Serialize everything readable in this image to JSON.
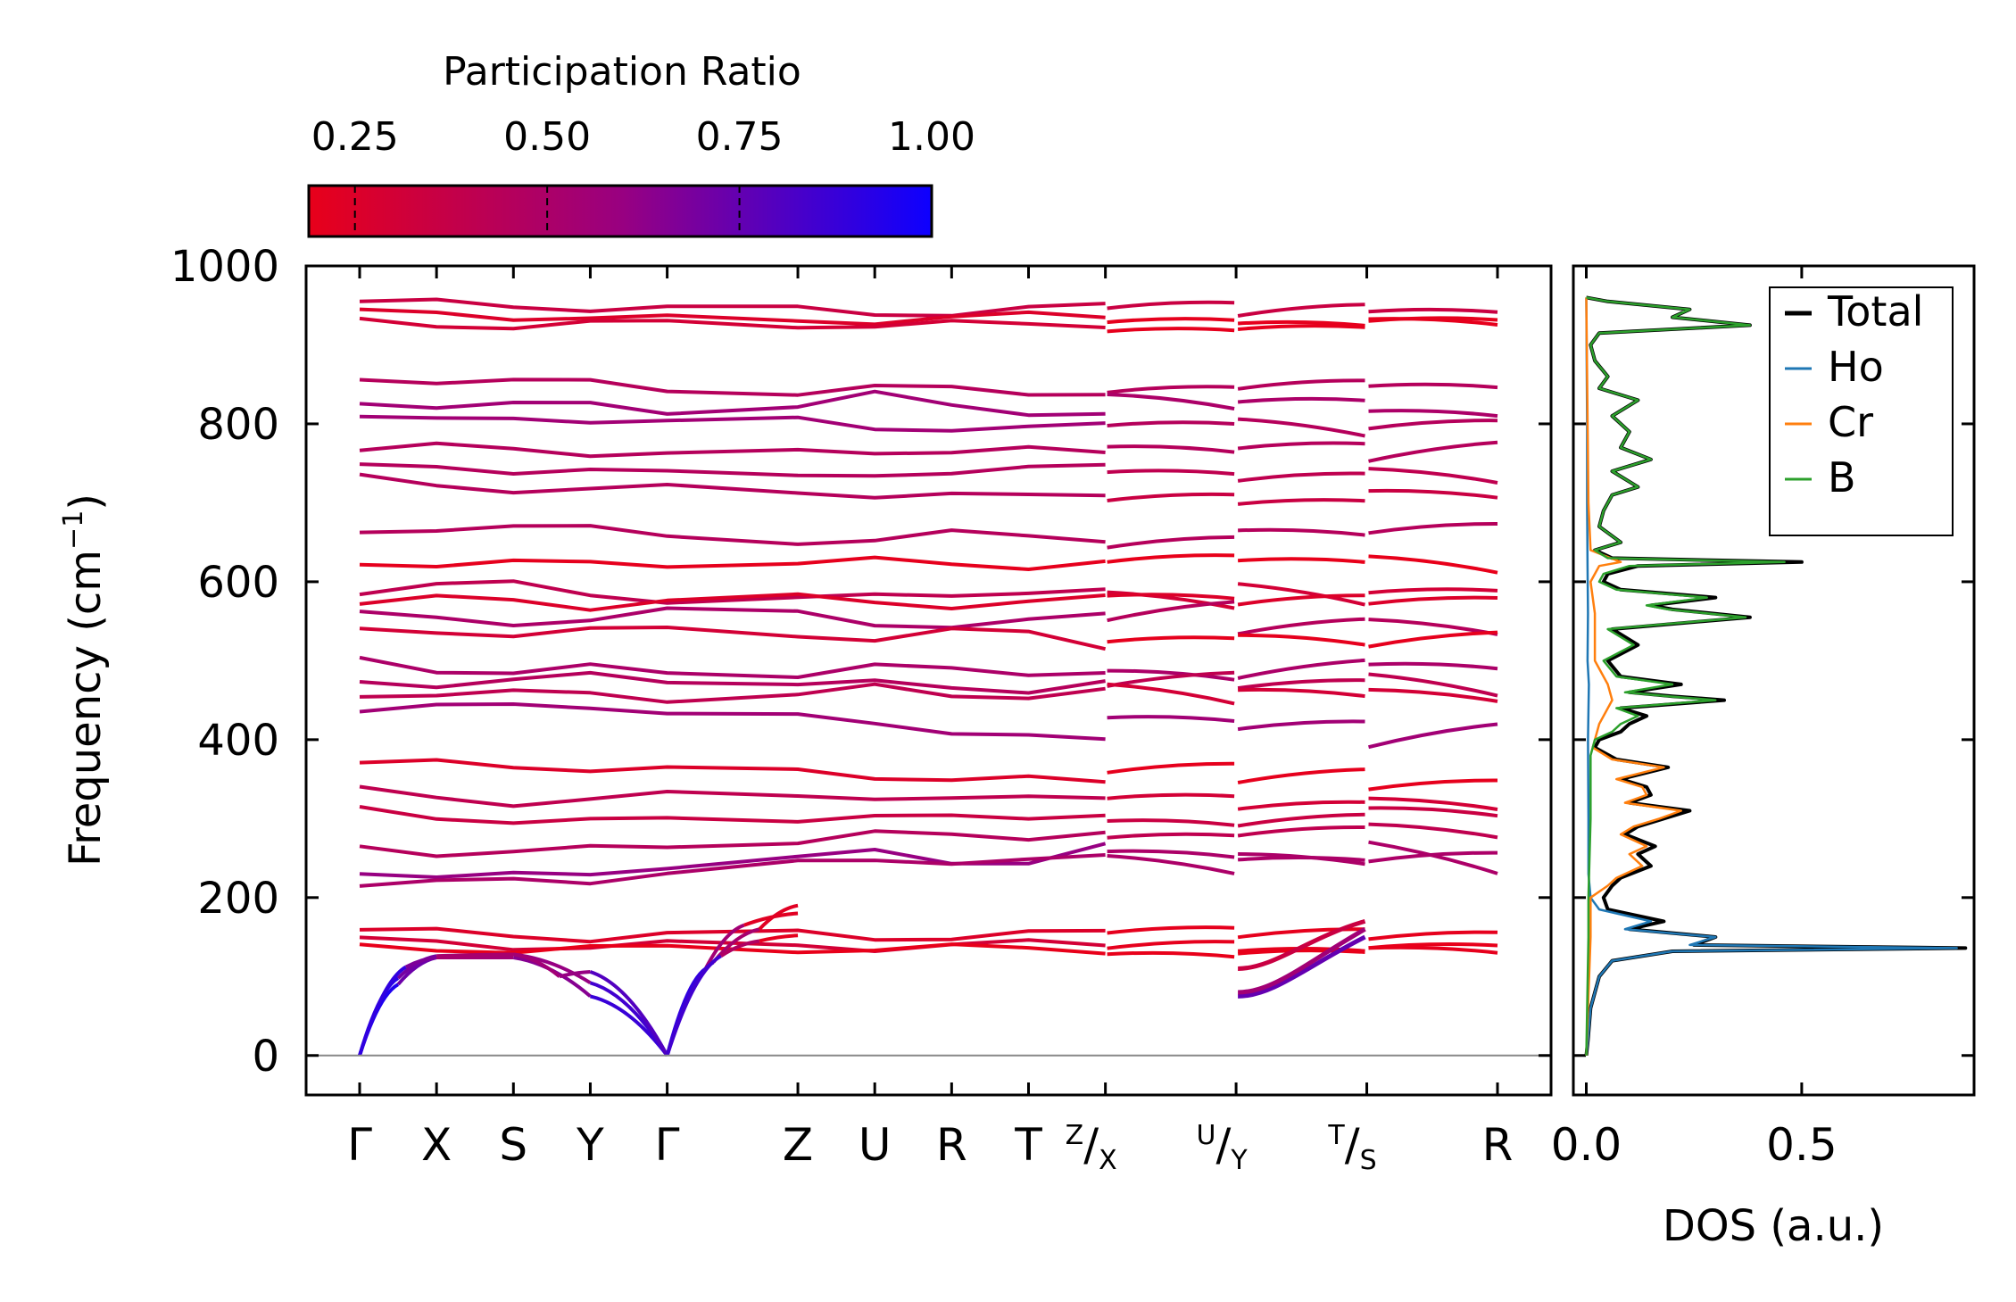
{
  "chart_data": [
    {
      "type": "line",
      "title": "",
      "xlabel": "",
      "ylabel": "Frequency (cm",
      "ylabel_sup": "−1",
      "ylabel_close": ")",
      "ylim": [
        -50,
        1000
      ],
      "yticks": [
        0,
        200,
        400,
        600,
        800,
        1000
      ],
      "segments": [
        {
          "labels": [
            "Γ",
            "X",
            "S",
            "Y",
            "Γ",
            "Z",
            "U",
            "R",
            "T",
            "Z"
          ],
          "dist": [
            0,
            1,
            2,
            3,
            4,
            5.7,
            6.7,
            7.7,
            8.7,
            9.7
          ]
        },
        {
          "labels": [
            "X",
            "U"
          ],
          "dist": [
            9.7,
            11.4
          ]
        },
        {
          "labels": [
            "Y",
            "T"
          ],
          "dist": [
            11.4,
            13.1
          ]
        },
        {
          "labels": [
            "S",
            "R"
          ],
          "dist": [
            13.1,
            14.8
          ]
        }
      ],
      "tick_labels": [
        {
          "d": 0,
          "label": "Γ"
        },
        {
          "d": 1,
          "label": "X"
        },
        {
          "d": 2,
          "label": "S"
        },
        {
          "d": 3,
          "label": "Y"
        },
        {
          "d": 4,
          "label": "Γ"
        },
        {
          "d": 5.7,
          "label": "Z"
        },
        {
          "d": 6.7,
          "label": "U"
        },
        {
          "d": 7.7,
          "label": "R"
        },
        {
          "d": 8.7,
          "label": "T"
        },
        {
          "d": 9.7,
          "label_sup": "Z",
          "label_sub": "X"
        },
        {
          "d": 11.4,
          "label_sup": "U",
          "label_sub": "Y"
        },
        {
          "d": 13.1,
          "label_sup": "T",
          "label_sub": "S"
        },
        {
          "d": 14.8,
          "label": "R"
        }
      ],
      "bands": {
        "acoustic": [
          {
            "x": [
              0,
              0.5,
              1,
              2,
              3,
              4
            ],
            "y": [
              0,
              90,
              124,
              124,
              75,
              0
            ],
            "pr": [
              1,
              0.9,
              0.55,
              0.55,
              0.75,
              1
            ]
          },
          {
            "x": [
              0,
              0.5,
              1,
              2,
              3,
              4
            ],
            "y": [
              0,
              98,
              126,
              128,
              92,
              0
            ],
            "pr": [
              1,
              0.85,
              0.55,
              0.5,
              0.7,
              1
            ]
          },
          {
            "x": [
              0,
              0.6,
              1,
              2,
              2.6,
              3,
              4
            ],
            "y": [
              0,
              112,
              124,
              128,
              100,
              106,
              0
            ],
            "pr": [
              1,
              0.8,
              0.55,
              0.5,
              0.6,
              0.6,
              1
            ]
          },
          {
            "x": [
              4,
              4.5,
              5,
              5.7
            ],
            "y": [
              0,
              110,
              165,
              180
            ],
            "pr": [
              1,
              0.8,
              0.3,
              0.15
            ]
          },
          {
            "x": [
              4,
              4.6,
              5.2,
              5.7
            ],
            "y": [
              0,
              118,
              160,
              190
            ],
            "pr": [
              1,
              0.75,
              0.3,
              0.15
            ]
          },
          {
            "x": [
              4,
              4.7,
              5.2,
              5.7
            ],
            "y": [
              0,
              126,
              145,
              152
            ],
            "pr": [
              1,
              0.7,
              0.25,
              0.15
            ]
          }
        ],
        "optical": [
          {
            "levels": [
              955,
              950,
              948,
              945,
              942,
              940,
              950
            ],
            "pr": 0.35
          },
          {
            "levels": [
              940,
              938,
              935,
              930,
              932,
              935,
              938
            ],
            "pr": 0.2
          },
          {
            "levels": [
              928,
              925,
              926,
              928,
              925,
              925,
              928
            ],
            "pr": 0.2
          },
          {
            "levels": [
              855,
              858,
              850,
              840,
              845,
              842,
              840
            ],
            "pr": 0.45
          },
          {
            "levels": [
              830,
              820,
              825,
              815,
              835,
              820,
              810
            ],
            "pr": 0.5
          },
          {
            "levels": [
              815,
              800,
              805,
              810,
              790,
              800,
              795
            ],
            "pr": 0.45
          },
          {
            "levels": [
              768,
              770,
              765,
              760,
              765,
              770,
              760
            ],
            "pr": 0.45
          },
          {
            "levels": [
              745,
              740,
              745,
              730,
              740,
              735,
              750
            ],
            "pr": 0.4
          },
          {
            "levels": [
              730,
              720,
              715,
              720,
              710,
              705,
              715
            ],
            "pr": 0.35
          },
          {
            "levels": [
              660,
              675,
              665,
              655,
              650,
              665,
              655
            ],
            "pr": 0.45
          },
          {
            "levels": [
              625,
              623,
              622,
              625,
              625,
              620,
              625
            ],
            "pr": 0.15
          },
          {
            "levels": [
              590,
              600,
              585,
              575,
              580,
              590,
              585
            ],
            "pr": 0.3
          },
          {
            "levels": [
              575,
              578,
              570,
              580,
              575,
              570,
              578
            ],
            "pr": 0.25
          },
          {
            "levels": [
              560,
              545,
              555,
              565,
              550,
              540,
              560
            ],
            "pr": 0.45
          },
          {
            "levels": [
              535,
              535,
              540,
              535,
              530,
              540,
              520
            ],
            "pr": 0.2
          },
          {
            "levels": [
              500,
              485,
              490,
              480,
              495,
              480,
              490
            ],
            "pr": 0.5
          },
          {
            "levels": [
              475,
              470,
              480,
              475,
              470,
              460,
              475
            ],
            "pr": 0.4
          },
          {
            "levels": [
              460,
              455,
              460,
              450,
              465,
              455,
              460
            ],
            "pr": 0.3
          },
          {
            "levels": [
              440,
              440,
              445,
              430,
              420,
              410,
              395
            ],
            "pr": 0.55
          },
          {
            "levels": [
              370,
              368,
              365,
              360,
              355,
              350,
              345
            ],
            "pr": 0.2
          },
          {
            "levels": [
              335,
              320,
              325,
              330,
              330,
              320,
              330
            ],
            "pr": 0.3
          },
          {
            "levels": [
              310,
              300,
              295,
              300,
              305,
              295,
              310
            ],
            "pr": 0.35
          },
          {
            "levels": [
              265,
              255,
              260,
              270,
              280,
              275,
              285
            ],
            "pr": 0.4
          },
          {
            "levels": [
              235,
              225,
              228,
              250,
              255,
              240,
              265
            ],
            "pr": 0.5
          },
          {
            "levels": [
              220,
              218,
              222,
              240,
              245,
              250,
              248
            ],
            "pr": 0.5
          },
          {
            "levels": [
              160,
              152,
              150,
              155,
              150,
              152,
              155
            ],
            "pr": 0.2
          },
          {
            "levels": [
              145,
              140,
              138,
              140,
              138,
              140,
              142
            ],
            "pr": 0.2
          },
          {
            "levels": [
              135,
              135,
              135,
              135,
              136,
              135,
              135
            ],
            "pr": 0.15
          }
        ]
      }
    },
    {
      "type": "line",
      "xlabel": "DOS (a.u.)",
      "ylabel": "",
      "xlim": [
        -0.03,
        0.9
      ],
      "xticks": [
        0.0,
        0.5
      ],
      "ylim": [
        -50,
        1000
      ],
      "legend_position": "top-right",
      "series": [
        {
          "name": "Total",
          "color": "#000000",
          "freq": [
            0,
            20,
            60,
            100,
            120,
            132,
            136,
            140,
            150,
            160,
            170,
            185,
            200,
            215,
            225,
            240,
            255,
            265,
            280,
            290,
            300,
            310,
            320,
            330,
            340,
            350,
            365,
            375,
            390,
            400,
            410,
            420,
            430,
            440,
            450,
            455,
            460,
            470,
            480,
            500,
            520,
            540,
            555,
            565,
            570,
            580,
            590,
            600,
            610,
            620,
            625,
            630,
            640,
            650,
            670,
            690,
            710,
            720,
            740,
            755,
            770,
            790,
            810,
            830,
            845,
            860,
            880,
            900,
            915,
            925,
            935,
            945,
            955,
            960
          ],
          "dos": [
            0,
            0.004,
            0.01,
            0.03,
            0.06,
            0.2,
            0.88,
            0.25,
            0.3,
            0.1,
            0.18,
            0.05,
            0.04,
            0.06,
            0.08,
            0.15,
            0.12,
            0.16,
            0.09,
            0.12,
            0.18,
            0.24,
            0.1,
            0.15,
            0.14,
            0.08,
            0.19,
            0.07,
            0.02,
            0.03,
            0.08,
            0.1,
            0.14,
            0.08,
            0.32,
            0.2,
            0.1,
            0.22,
            0.08,
            0.05,
            0.12,
            0.06,
            0.38,
            0.2,
            0.15,
            0.3,
            0.08,
            0.04,
            0.05,
            0.12,
            0.5,
            0.06,
            0.02,
            0.08,
            0.03,
            0.04,
            0.06,
            0.12,
            0.06,
            0.15,
            0.08,
            0.1,
            0.06,
            0.12,
            0.03,
            0.05,
            0.02,
            0.01,
            0.03,
            0.38,
            0.2,
            0.24,
            0.05,
            0.0
          ]
        },
        {
          "name": "Ho",
          "color": "#1f77b4",
          "freq": [
            0,
            20,
            60,
            100,
            120,
            132,
            136,
            140,
            150,
            160,
            170,
            185,
            200,
            230,
            300,
            400,
            470,
            500,
            560,
            620,
            700,
            800,
            960
          ],
          "dos": [
            0,
            0.004,
            0.01,
            0.03,
            0.06,
            0.2,
            0.86,
            0.24,
            0.3,
            0.09,
            0.15,
            0.03,
            0.01,
            0.005,
            0.005,
            0.004,
            0.006,
            0.003,
            0.004,
            0.003,
            0.002,
            0.002,
            0.0
          ]
        },
        {
          "name": "Cr",
          "color": "#ff7f0e",
          "freq": [
            0,
            150,
            200,
            215,
            225,
            240,
            255,
            265,
            280,
            290,
            300,
            310,
            320,
            330,
            340,
            350,
            365,
            375,
            390,
            420,
            450,
            470,
            500,
            560,
            600,
            620,
            625,
            640,
            700,
            960
          ],
          "dos": [
            0,
            0.01,
            0.01,
            0.05,
            0.07,
            0.13,
            0.1,
            0.14,
            0.08,
            0.11,
            0.17,
            0.22,
            0.09,
            0.14,
            0.13,
            0.07,
            0.18,
            0.06,
            0.015,
            0.03,
            0.06,
            0.05,
            0.02,
            0.02,
            0.01,
            0.03,
            0.08,
            0.01,
            0.005,
            0.0
          ]
        },
        {
          "name": "B",
          "color": "#2ca02c",
          "freq": [
            0,
            150,
            200,
            300,
            380,
            400,
            410,
            420,
            430,
            440,
            450,
            455,
            460,
            470,
            480,
            500,
            520,
            540,
            555,
            565,
            570,
            580,
            590,
            600,
            610,
            620,
            625,
            630,
            640,
            650,
            670,
            690,
            710,
            720,
            740,
            755,
            770,
            790,
            810,
            830,
            845,
            860,
            880,
            900,
            915,
            925,
            935,
            945,
            955,
            960
          ],
          "dos": [
            0,
            0.005,
            0.005,
            0.01,
            0.01,
            0.02,
            0.06,
            0.08,
            0.12,
            0.07,
            0.3,
            0.19,
            0.09,
            0.2,
            0.07,
            0.04,
            0.11,
            0.05,
            0.37,
            0.19,
            0.14,
            0.28,
            0.07,
            0.03,
            0.04,
            0.1,
            0.46,
            0.05,
            0.02,
            0.08,
            0.03,
            0.04,
            0.06,
            0.12,
            0.06,
            0.15,
            0.08,
            0.1,
            0.06,
            0.12,
            0.03,
            0.05,
            0.02,
            0.01,
            0.03,
            0.38,
            0.2,
            0.24,
            0.05,
            0.0
          ]
        }
      ]
    }
  ],
  "colorbar": {
    "title": "Participation Ratio",
    "range": [
      0.19,
      1.0
    ],
    "ticks": [
      0.25,
      0.5,
      0.75,
      1.0
    ],
    "tick_labels": [
      "0.25",
      "0.50",
      "0.75",
      "1.00"
    ],
    "color_low": "#e8001a",
    "color_mid": "#990080",
    "color_high": "#0d00ff"
  }
}
